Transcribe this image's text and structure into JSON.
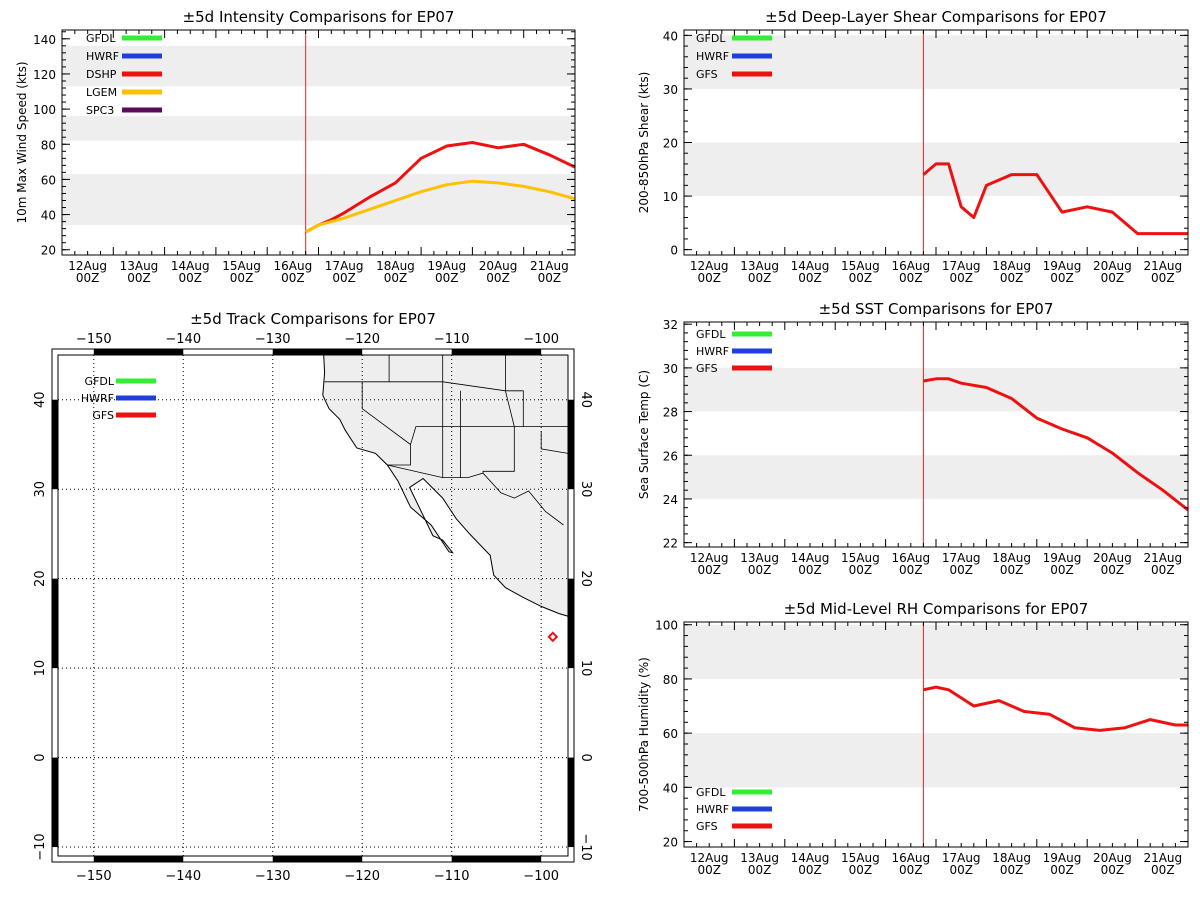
{
  "colors": {
    "GFDL": "#33ee33",
    "HWRF": "#1f3fdd",
    "DSHP": "#ee1111",
    "LGEM": "#ffc000",
    "SPC3": "#5a0a5a",
    "GFS": "#ee1111",
    "band": "#eeeeee",
    "init_line": "#ee2222",
    "land": "#eeeeee"
  },
  "chart_data": [
    {
      "id": "intensity",
      "type": "line",
      "title": "±5d Intensity Comparisons for EP07",
      "ylabel": "10m Max Wind Speed (kts)",
      "xlim": [
        0,
        10
      ],
      "ylim": [
        17,
        145
      ],
      "yticks": [
        20,
        40,
        60,
        80,
        100,
        120,
        140
      ],
      "bands": [
        [
          34,
          63
        ],
        [
          82,
          96
        ],
        [
          113,
          136
        ]
      ],
      "init_x": 4.75,
      "x_ticks": [
        {
          "day": "12Aug",
          "hour": "00Z"
        },
        {
          "day": "13Aug",
          "hour": "00Z"
        },
        {
          "day": "14Aug",
          "hour": "00Z"
        },
        {
          "day": "15Aug",
          "hour": "00Z"
        },
        {
          "day": "16Aug",
          "hour": "00Z"
        },
        {
          "day": "17Aug",
          "hour": "00Z"
        },
        {
          "day": "18Aug",
          "hour": "00Z"
        },
        {
          "day": "19Aug",
          "hour": "00Z"
        },
        {
          "day": "20Aug",
          "hour": "00Z"
        },
        {
          "day": "21Aug",
          "hour": "00Z"
        }
      ],
      "legend": [
        "GFDL",
        "HWRF",
        "DSHP",
        "LGEM",
        "SPC3"
      ],
      "series": [
        {
          "name": "DSHP",
          "x": [
            4.75,
            5.0,
            5.25,
            5.5,
            6.0,
            6.5,
            7.0,
            7.5,
            8.0,
            8.5,
            9.0,
            9.5,
            10.0
          ],
          "values": [
            30,
            34,
            37,
            41,
            50,
            58,
            72,
            79,
            81,
            78,
            80,
            74,
            67
          ]
        },
        {
          "name": "LGEM",
          "x": [
            4.75,
            5.0,
            5.25,
            5.5,
            6.0,
            6.5,
            7.0,
            7.5,
            8.0,
            8.5,
            9.0,
            9.5,
            10.0
          ],
          "values": [
            30,
            34,
            36,
            38,
            43,
            48,
            53,
            57,
            59,
            58,
            56,
            53,
            49
          ]
        }
      ]
    },
    {
      "id": "shear",
      "type": "line",
      "title": "±5d Deep-Layer Shear Comparisons for EP07",
      "ylabel": "200-850hPa Shear (kts)",
      "xlim": [
        0,
        10
      ],
      "ylim": [
        -1,
        41
      ],
      "yticks": [
        0,
        10,
        20,
        30,
        40
      ],
      "bands": [
        [
          10,
          20
        ],
        [
          30,
          40
        ]
      ],
      "init_x": 4.75,
      "x_ticks": [
        {
          "day": "12Aug",
          "hour": "00Z"
        },
        {
          "day": "13Aug",
          "hour": "00Z"
        },
        {
          "day": "14Aug",
          "hour": "00Z"
        },
        {
          "day": "15Aug",
          "hour": "00Z"
        },
        {
          "day": "16Aug",
          "hour": "00Z"
        },
        {
          "day": "17Aug",
          "hour": "00Z"
        },
        {
          "day": "18Aug",
          "hour": "00Z"
        },
        {
          "day": "19Aug",
          "hour": "00Z"
        },
        {
          "day": "20Aug",
          "hour": "00Z"
        },
        {
          "day": "21Aug",
          "hour": "00Z"
        }
      ],
      "legend": [
        "GFDL",
        "HWRF",
        "GFS"
      ],
      "series": [
        {
          "name": "GFS",
          "x": [
            4.75,
            5.0,
            5.25,
            5.5,
            5.75,
            6.0,
            6.5,
            7.0,
            7.5,
            8.0,
            8.5,
            9.0,
            9.5,
            10.0
          ],
          "values": [
            14,
            16,
            16,
            8,
            6,
            12,
            14,
            14,
            7,
            8,
            7,
            3,
            3,
            3
          ]
        }
      ]
    },
    {
      "id": "sst",
      "type": "line",
      "title": "±5d SST Comparisons for EP07",
      "ylabel": "Sea Surface Temp (C)",
      "xlim": [
        0,
        10
      ],
      "ylim": [
        21.8,
        32.1
      ],
      "yticks": [
        22,
        24,
        26,
        28,
        30,
        32
      ],
      "bands": [
        [
          24,
          26
        ],
        [
          28,
          30
        ]
      ],
      "init_x": 4.75,
      "x_ticks": [
        {
          "day": "12Aug",
          "hour": "00Z"
        },
        {
          "day": "13Aug",
          "hour": "00Z"
        },
        {
          "day": "14Aug",
          "hour": "00Z"
        },
        {
          "day": "15Aug",
          "hour": "00Z"
        },
        {
          "day": "16Aug",
          "hour": "00Z"
        },
        {
          "day": "17Aug",
          "hour": "00Z"
        },
        {
          "day": "18Aug",
          "hour": "00Z"
        },
        {
          "day": "19Aug",
          "hour": "00Z"
        },
        {
          "day": "20Aug",
          "hour": "00Z"
        },
        {
          "day": "21Aug",
          "hour": "00Z"
        }
      ],
      "legend": [
        "GFDL",
        "HWRF",
        "GFS"
      ],
      "series": [
        {
          "name": "GFS",
          "x": [
            4.75,
            5.0,
            5.25,
            5.5,
            6.0,
            6.5,
            7.0,
            7.5,
            8.0,
            8.5,
            9.0,
            9.5,
            10.0
          ],
          "values": [
            29.4,
            29.5,
            29.5,
            29.3,
            29.1,
            28.6,
            27.7,
            27.2,
            26.8,
            26.1,
            25.2,
            24.4,
            23.5
          ]
        }
      ]
    },
    {
      "id": "rh",
      "type": "line",
      "title": "±5d Mid-Level RH Comparisons for EP07",
      "ylabel": "700-500hPa Humidity (%)",
      "xlim": [
        0,
        10
      ],
      "ylim": [
        18,
        101
      ],
      "yticks": [
        20,
        40,
        60,
        80,
        100
      ],
      "bands": [
        [
          40,
          60
        ],
        [
          80,
          100
        ]
      ],
      "init_x": 4.75,
      "x_ticks": [
        {
          "day": "12Aug",
          "hour": "00Z"
        },
        {
          "day": "13Aug",
          "hour": "00Z"
        },
        {
          "day": "14Aug",
          "hour": "00Z"
        },
        {
          "day": "15Aug",
          "hour": "00Z"
        },
        {
          "day": "16Aug",
          "hour": "00Z"
        },
        {
          "day": "17Aug",
          "hour": "00Z"
        },
        {
          "day": "18Aug",
          "hour": "00Z"
        },
        {
          "day": "19Aug",
          "hour": "00Z"
        },
        {
          "day": "20Aug",
          "hour": "00Z"
        },
        {
          "day": "21Aug",
          "hour": "00Z"
        }
      ],
      "legend": [
        "GFDL",
        "HWRF",
        "GFS"
      ],
      "series": [
        {
          "name": "GFS",
          "x": [
            4.75,
            5.0,
            5.25,
            5.75,
            6.25,
            6.75,
            7.25,
            7.75,
            8.25,
            8.75,
            9.25,
            9.75,
            10.0
          ],
          "values": [
            76,
            77,
            76,
            70,
            72,
            68,
            67,
            62,
            61,
            62,
            65,
            63,
            63
          ]
        }
      ]
    },
    {
      "id": "track",
      "type": "map",
      "title": "±5d Track Comparisons for EP07",
      "lon_range": [
        -154,
        -97
      ],
      "lat_range": [
        -11,
        45
      ],
      "lon_ticks": [
        -150,
        -140,
        -130,
        -120,
        -110,
        -100
      ],
      "lat_ticks": [
        -10,
        0,
        10,
        20,
        30,
        40
      ],
      "legend": [
        "GFDL",
        "HWRF",
        "GFS"
      ],
      "marker": {
        "name": "GFS",
        "lon": -98.7,
        "lat": 13.5
      },
      "coastline": [
        [
          -124.3,
          45
        ],
        [
          -124.2,
          43
        ],
        [
          -124.4,
          40.5
        ],
        [
          -123.7,
          39
        ],
        [
          -122.5,
          37.8
        ],
        [
          -121.9,
          36.6
        ],
        [
          -120.6,
          34.6
        ],
        [
          -118.5,
          34
        ],
        [
          -117.2,
          32.7
        ],
        [
          -116,
          30.9
        ],
        [
          -114.6,
          28
        ],
        [
          -112.3,
          26
        ],
        [
          -110.3,
          23
        ],
        [
          -109.9,
          22.9
        ],
        [
          -111,
          24.3
        ],
        [
          -112.1,
          24.8
        ],
        [
          -114.7,
          30.2
        ],
        [
          -113.2,
          31.2
        ],
        [
          -111,
          29
        ],
        [
          -109.5,
          26.7
        ],
        [
          -108,
          25
        ],
        [
          -105.7,
          22.6
        ],
        [
          -105.3,
          20.4
        ],
        [
          -104,
          19
        ],
        [
          -102,
          17.9
        ],
        [
          -100,
          16.9
        ],
        [
          -98,
          16.1
        ],
        [
          -97,
          15.8
        ]
      ],
      "borders": [
        [
          [
            -124.2,
            42
          ],
          [
            -120,
            42
          ],
          [
            -111,
            42
          ],
          [
            -104,
            41
          ],
          [
            -102,
            41
          ],
          [
            -102,
            37
          ],
          [
            -109,
            37
          ],
          [
            -114,
            37
          ],
          [
            -114.6,
            35
          ],
          [
            -114.6,
            32.7
          ],
          [
            -117.2,
            32.7
          ]
        ],
        [
          [
            -120,
            42
          ],
          [
            -120,
            39
          ],
          [
            -114.6,
            35
          ]
        ],
        [
          [
            -117,
            45
          ],
          [
            -117,
            42
          ]
        ],
        [
          [
            -111,
            45
          ],
          [
            -111,
            41
          ],
          [
            -111,
            37
          ],
          [
            -111,
            31.3
          ]
        ],
        [
          [
            -109,
            41
          ],
          [
            -109,
            37
          ],
          [
            -109,
            31.3
          ]
        ],
        [
          [
            -104,
            45
          ],
          [
            -104,
            41
          ],
          [
            -103,
            37
          ],
          [
            -103,
            32
          ],
          [
            -106.5,
            32
          ],
          [
            -106.5,
            31.8
          ]
        ],
        [
          [
            -117.2,
            32.7
          ],
          [
            -111,
            31.3
          ],
          [
            -108.2,
            31.3
          ],
          [
            -106.5,
            31.8
          ],
          [
            -104.5,
            29.6
          ],
          [
            -103,
            29
          ],
          [
            -101.4,
            29.8
          ],
          [
            -99.5,
            27.5
          ],
          [
            -97.5,
            26
          ]
        ],
        [
          [
            -102,
            37
          ],
          [
            -100,
            37
          ],
          [
            -97,
            37
          ]
        ],
        [
          [
            -100,
            36.5
          ],
          [
            -100,
            34.5
          ],
          [
            -97,
            34
          ]
        ]
      ]
    }
  ]
}
